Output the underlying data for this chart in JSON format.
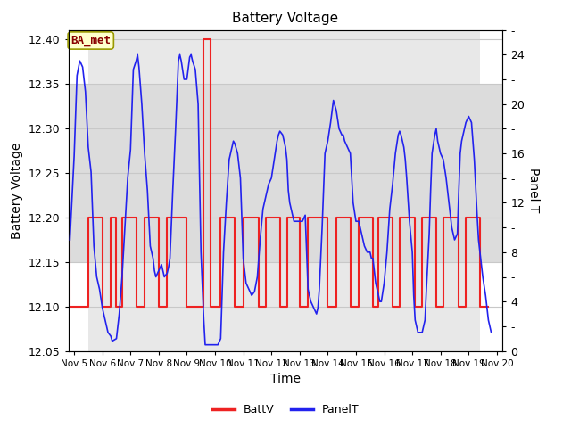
{
  "title": "Battery Voltage",
  "xlabel": "Time",
  "ylabel_left": "Battery Voltage",
  "ylabel_right": "Panel T",
  "xlim_days": [
    4.8,
    20.2
  ],
  "ylim_left": [
    12.05,
    12.41
  ],
  "ylim_right": [
    0,
    26
  ],
  "yticks_left": [
    12.05,
    12.1,
    12.15,
    12.2,
    12.25,
    12.3,
    12.35,
    12.4
  ],
  "yticks_right": [
    0,
    2,
    4,
    6,
    8,
    10,
    12,
    14,
    16,
    18,
    20,
    22,
    24,
    26
  ],
  "xtick_labels": [
    "Nov 5",
    "Nov 6",
    "Nov 7",
    "Nov 8",
    "Nov 9",
    "Nov 10",
    "Nov 11",
    "Nov 12",
    "Nov 13",
    "Nov 14",
    "Nov 15",
    "Nov 16",
    "Nov 17",
    "Nov 18",
    "Nov 19",
    "Nov 20"
  ],
  "xtick_positions": [
    5,
    6,
    7,
    8,
    9,
    10,
    11,
    12,
    13,
    14,
    15,
    16,
    17,
    18,
    19,
    20
  ],
  "fig_bg_color": "#ffffff",
  "plot_bg_color": "#ffffff",
  "shaded_color": "#dcdcdc",
  "grid_color": "#c8c8c8",
  "annotation_text": "BA_met",
  "annotation_bg": "#ffffcc",
  "annotation_border": "#999900",
  "batt_color": "#ee2222",
  "panel_color": "#2222ee",
  "legend_batt": "BattV",
  "legend_panel": "PanelT",
  "batt_v": [
    [
      4.85,
      12.19
    ],
    [
      4.85,
      12.1
    ],
    [
      5.5,
      12.1
    ],
    [
      5.5,
      12.2
    ],
    [
      6.0,
      12.2
    ],
    [
      6.0,
      12.1
    ],
    [
      6.3,
      12.1
    ],
    [
      6.3,
      12.2
    ],
    [
      6.5,
      12.2
    ],
    [
      6.5,
      12.1
    ],
    [
      6.7,
      12.1
    ],
    [
      6.7,
      12.2
    ],
    [
      7.2,
      12.2
    ],
    [
      7.2,
      12.1
    ],
    [
      7.5,
      12.1
    ],
    [
      7.5,
      12.2
    ],
    [
      8.0,
      12.2
    ],
    [
      8.0,
      12.1
    ],
    [
      8.3,
      12.1
    ],
    [
      8.3,
      12.2
    ],
    [
      9.0,
      12.2
    ],
    [
      9.0,
      12.1
    ],
    [
      9.6,
      12.1
    ],
    [
      9.6,
      12.4
    ],
    [
      9.85,
      12.4
    ],
    [
      9.85,
      12.1
    ],
    [
      10.2,
      12.1
    ],
    [
      10.2,
      12.2
    ],
    [
      10.7,
      12.2
    ],
    [
      10.7,
      12.1
    ],
    [
      11.0,
      12.1
    ],
    [
      11.0,
      12.2
    ],
    [
      11.55,
      12.2
    ],
    [
      11.55,
      12.1
    ],
    [
      11.8,
      12.1
    ],
    [
      11.8,
      12.2
    ],
    [
      12.3,
      12.2
    ],
    [
      12.3,
      12.1
    ],
    [
      12.55,
      12.1
    ],
    [
      12.55,
      12.2
    ],
    [
      13.0,
      12.2
    ],
    [
      13.0,
      12.1
    ],
    [
      13.3,
      12.1
    ],
    [
      13.3,
      12.2
    ],
    [
      14.0,
      12.2
    ],
    [
      14.0,
      12.1
    ],
    [
      14.3,
      12.1
    ],
    [
      14.3,
      12.2
    ],
    [
      14.8,
      12.2
    ],
    [
      14.8,
      12.1
    ],
    [
      15.1,
      12.1
    ],
    [
      15.1,
      12.2
    ],
    [
      15.6,
      12.2
    ],
    [
      15.6,
      12.1
    ],
    [
      15.8,
      12.1
    ],
    [
      15.8,
      12.2
    ],
    [
      16.3,
      12.2
    ],
    [
      16.3,
      12.1
    ],
    [
      16.55,
      12.1
    ],
    [
      16.55,
      12.2
    ],
    [
      17.1,
      12.2
    ],
    [
      17.1,
      12.1
    ],
    [
      17.35,
      12.1
    ],
    [
      17.35,
      12.2
    ],
    [
      17.85,
      12.2
    ],
    [
      17.85,
      12.1
    ],
    [
      18.1,
      12.1
    ],
    [
      18.1,
      12.2
    ],
    [
      18.65,
      12.2
    ],
    [
      18.65,
      12.1
    ],
    [
      18.9,
      12.1
    ],
    [
      18.9,
      12.2
    ],
    [
      19.4,
      12.2
    ],
    [
      19.4,
      12.1
    ],
    [
      19.7,
      12.1
    ]
  ],
  "panel_t": [
    [
      4.85,
      9.0
    ],
    [
      5.0,
      15.8
    ],
    [
      5.1,
      22.3
    ],
    [
      5.2,
      23.5
    ],
    [
      5.3,
      23.0
    ],
    [
      5.4,
      21.0
    ],
    [
      5.5,
      16.5
    ],
    [
      5.6,
      14.5
    ],
    [
      5.7,
      8.5
    ],
    [
      5.8,
      6.0
    ],
    [
      5.9,
      5.0
    ],
    [
      6.0,
      3.5
    ],
    [
      6.1,
      2.5
    ],
    [
      6.2,
      1.5
    ],
    [
      6.3,
      1.2
    ],
    [
      6.35,
      0.8
    ],
    [
      6.5,
      1.0
    ],
    [
      6.6,
      3.0
    ],
    [
      6.7,
      6.0
    ],
    [
      6.8,
      10.0
    ],
    [
      6.9,
      14.0
    ],
    [
      7.0,
      16.3
    ],
    [
      7.1,
      22.8
    ],
    [
      7.2,
      23.5
    ],
    [
      7.25,
      24.0
    ],
    [
      7.3,
      23.0
    ],
    [
      7.4,
      20.0
    ],
    [
      7.5,
      16.0
    ],
    [
      7.6,
      13.0
    ],
    [
      7.7,
      8.5
    ],
    [
      7.8,
      7.5
    ],
    [
      7.85,
      6.5
    ],
    [
      7.9,
      6.0
    ],
    [
      8.0,
      6.5
    ],
    [
      8.1,
      7.0
    ],
    [
      8.15,
      6.5
    ],
    [
      8.2,
      6.0
    ],
    [
      8.3,
      6.3
    ],
    [
      8.35,
      6.8
    ],
    [
      8.4,
      7.5
    ],
    [
      8.5,
      13.0
    ],
    [
      8.6,
      18.0
    ],
    [
      8.7,
      23.5
    ],
    [
      8.75,
      24.0
    ],
    [
      8.8,
      23.5
    ],
    [
      8.9,
      22.0
    ],
    [
      9.0,
      22.0
    ],
    [
      9.1,
      23.8
    ],
    [
      9.15,
      24.0
    ],
    [
      9.2,
      23.5
    ],
    [
      9.3,
      22.8
    ],
    [
      9.4,
      20.0
    ],
    [
      9.5,
      8.0
    ],
    [
      9.6,
      2.5
    ],
    [
      9.65,
      0.5
    ],
    [
      9.7,
      0.5
    ],
    [
      9.8,
      0.5
    ],
    [
      9.9,
      0.5
    ],
    [
      10.0,
      0.5
    ],
    [
      10.1,
      0.5
    ],
    [
      10.2,
      1.0
    ],
    [
      10.3,
      8.0
    ],
    [
      10.4,
      12.0
    ],
    [
      10.5,
      15.5
    ],
    [
      10.6,
      16.5
    ],
    [
      10.65,
      17.0
    ],
    [
      10.7,
      16.8
    ],
    [
      10.8,
      16.0
    ],
    [
      10.9,
      14.0
    ],
    [
      11.0,
      7.5
    ],
    [
      11.05,
      6.5
    ],
    [
      11.1,
      5.5
    ],
    [
      11.2,
      5.0
    ],
    [
      11.3,
      4.5
    ],
    [
      11.4,
      4.8
    ],
    [
      11.5,
      6.0
    ],
    [
      11.55,
      7.5
    ],
    [
      11.6,
      9.0
    ],
    [
      11.7,
      11.5
    ],
    [
      11.8,
      12.5
    ],
    [
      11.85,
      13.0
    ],
    [
      11.9,
      13.5
    ],
    [
      12.0,
      14.0
    ],
    [
      12.1,
      15.5
    ],
    [
      12.2,
      17.0
    ],
    [
      12.25,
      17.5
    ],
    [
      12.3,
      17.8
    ],
    [
      12.4,
      17.5
    ],
    [
      12.5,
      16.5
    ],
    [
      12.55,
      15.5
    ],
    [
      12.6,
      13.0
    ],
    [
      12.65,
      12.0
    ],
    [
      12.7,
      11.5
    ],
    [
      12.75,
      11.0
    ],
    [
      12.8,
      10.5
    ],
    [
      12.9,
      10.5
    ],
    [
      13.0,
      10.5
    ],
    [
      13.1,
      10.5
    ],
    [
      13.2,
      11.0
    ],
    [
      13.3,
      5.0
    ],
    [
      13.35,
      4.5
    ],
    [
      13.4,
      4.0
    ],
    [
      13.5,
      3.5
    ],
    [
      13.6,
      3.0
    ],
    [
      13.65,
      3.5
    ],
    [
      13.7,
      5.0
    ],
    [
      13.8,
      10.0
    ],
    [
      13.9,
      16.0
    ],
    [
      14.0,
      17.0
    ],
    [
      14.1,
      18.5
    ],
    [
      14.2,
      20.3
    ],
    [
      14.3,
      19.5
    ],
    [
      14.4,
      18.0
    ],
    [
      14.5,
      17.5
    ],
    [
      14.55,
      17.5
    ],
    [
      14.6,
      17.0
    ],
    [
      14.7,
      16.5
    ],
    [
      14.8,
      16.0
    ],
    [
      14.85,
      14.0
    ],
    [
      14.9,
      12.0
    ],
    [
      15.0,
      10.5
    ],
    [
      15.1,
      10.5
    ],
    [
      15.2,
      9.5
    ],
    [
      15.3,
      8.5
    ],
    [
      15.4,
      8.0
    ],
    [
      15.5,
      8.0
    ],
    [
      15.55,
      7.5
    ],
    [
      15.6,
      7.5
    ],
    [
      15.65,
      6.5
    ],
    [
      15.7,
      5.5
    ],
    [
      15.75,
      5.0
    ],
    [
      15.8,
      4.5
    ],
    [
      15.85,
      4.0
    ],
    [
      15.9,
      4.0
    ],
    [
      16.0,
      5.5
    ],
    [
      16.1,
      8.0
    ],
    [
      16.2,
      11.5
    ],
    [
      16.3,
      13.5
    ],
    [
      16.4,
      16.0
    ],
    [
      16.5,
      17.5
    ],
    [
      16.55,
      17.8
    ],
    [
      16.6,
      17.5
    ],
    [
      16.7,
      16.5
    ],
    [
      16.75,
      15.5
    ],
    [
      16.8,
      14.0
    ],
    [
      16.9,
      10.5
    ],
    [
      17.0,
      8.0
    ],
    [
      17.05,
      4.5
    ],
    [
      17.1,
      2.5
    ],
    [
      17.15,
      2.0
    ],
    [
      17.2,
      1.5
    ],
    [
      17.25,
      1.5
    ],
    [
      17.3,
      1.5
    ],
    [
      17.35,
      1.5
    ],
    [
      17.4,
      2.0
    ],
    [
      17.45,
      2.5
    ],
    [
      17.5,
      5.0
    ],
    [
      17.6,
      9.5
    ],
    [
      17.65,
      13.0
    ],
    [
      17.7,
      16.0
    ],
    [
      17.8,
      17.5
    ],
    [
      17.85,
      18.0
    ],
    [
      17.9,
      17.0
    ],
    [
      18.0,
      16.0
    ],
    [
      18.1,
      15.5
    ],
    [
      18.2,
      14.0
    ],
    [
      18.3,
      12.0
    ],
    [
      18.4,
      10.0
    ],
    [
      18.5,
      9.0
    ],
    [
      18.6,
      9.5
    ],
    [
      18.65,
      13.0
    ],
    [
      18.7,
      16.0
    ],
    [
      18.75,
      17.0
    ],
    [
      18.8,
      17.5
    ],
    [
      18.9,
      18.5
    ],
    [
      19.0,
      19.0
    ],
    [
      19.1,
      18.5
    ],
    [
      19.15,
      17.0
    ],
    [
      19.2,
      15.5
    ],
    [
      19.3,
      11.0
    ],
    [
      19.35,
      9.0
    ],
    [
      19.4,
      8.0
    ],
    [
      19.5,
      6.0
    ],
    [
      19.6,
      4.5
    ],
    [
      19.65,
      3.5
    ],
    [
      19.7,
      2.5
    ],
    [
      19.75,
      2.0
    ],
    [
      19.8,
      1.5
    ]
  ],
  "shaded_xmin": 5.5,
  "shaded_xmax": 19.4,
  "shaded_ymin": 12.15,
  "shaded_ymax": 12.35
}
